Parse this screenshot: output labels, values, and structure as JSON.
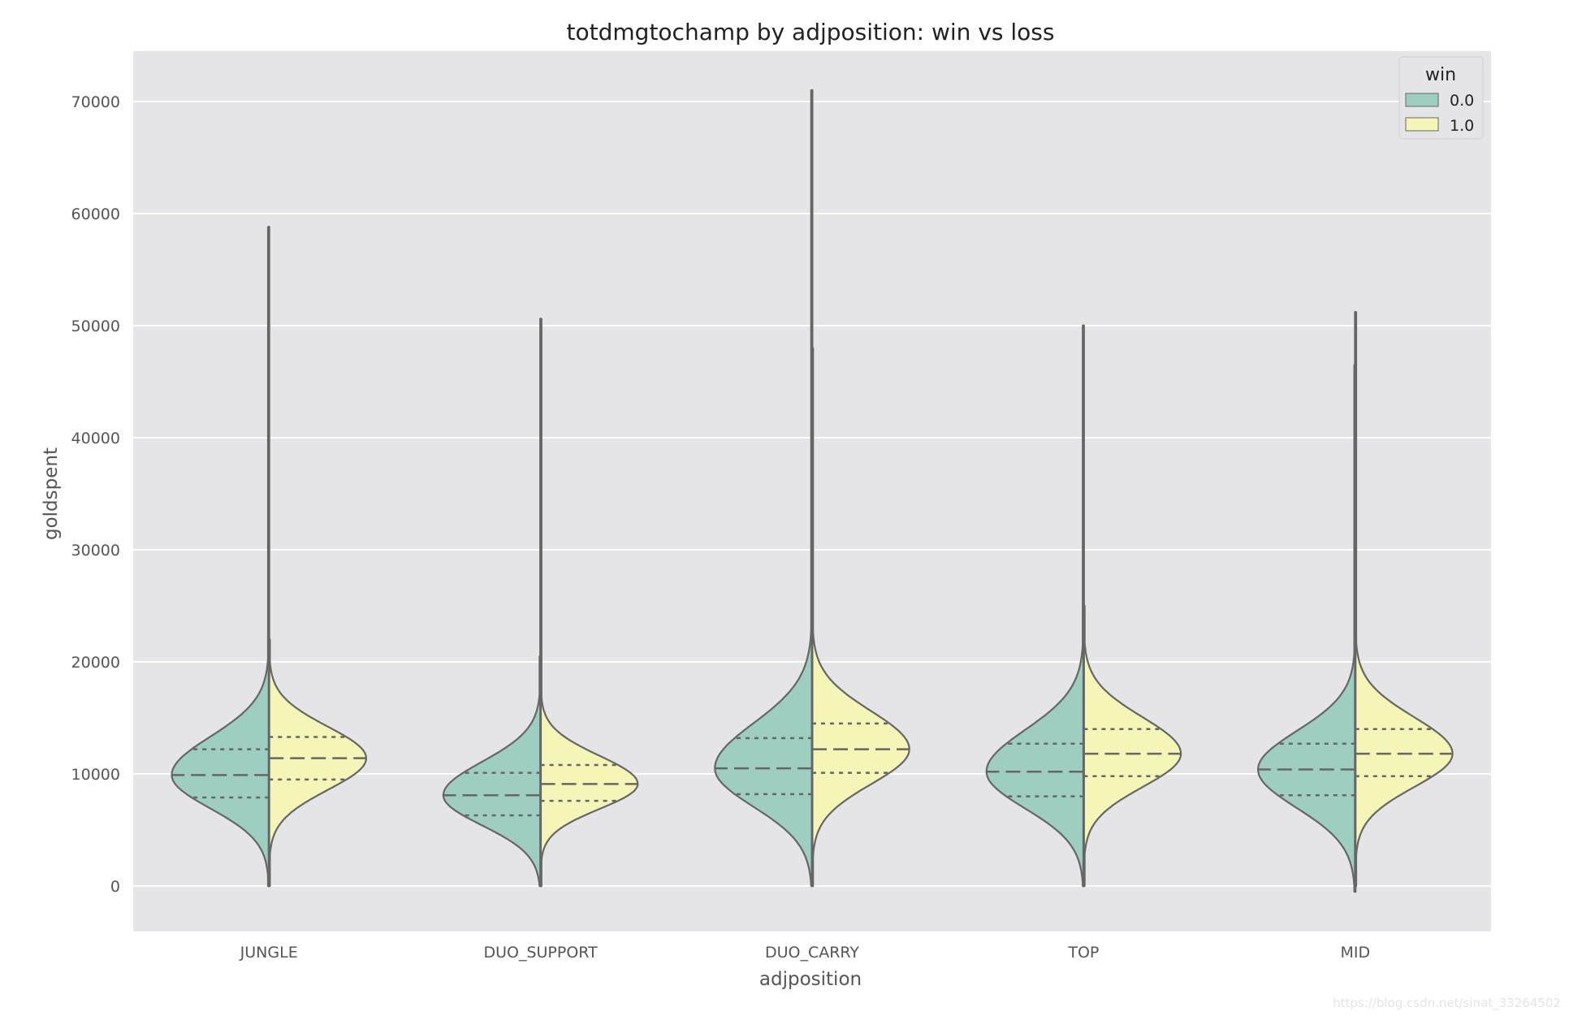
{
  "chart_data": {
    "type": "violin",
    "title": "totdmgtochamp by adjposition: win vs loss",
    "xlabel": "adjposition",
    "ylabel": "goldspent",
    "categories": [
      "JUNGLE",
      "DUO_SUPPORT",
      "DUO_CARRY",
      "TOP",
      "MID"
    ],
    "ylim": [
      -4000,
      75000
    ],
    "yticks": [
      0,
      10000,
      20000,
      30000,
      40000,
      50000,
      60000,
      70000
    ],
    "grid": true,
    "split": true,
    "inner": "quartile",
    "legend": {
      "title": "win",
      "position": "top-right",
      "entries": [
        {
          "label": "0.0",
          "color": "#9ecdc2"
        },
        {
          "label": "1.0",
          "color": "#f5f5b8"
        }
      ]
    },
    "series": [
      {
        "name": "0.0",
        "color": "#9ecdc2",
        "groups": [
          {
            "category": "JUNGLE",
            "min": 0,
            "max": 58800,
            "q1": 7900,
            "median": 9900,
            "q3": 12200
          },
          {
            "category": "DUO_SUPPORT",
            "min": 0,
            "max": 20500,
            "q1": 6300,
            "median": 8100,
            "q3": 10100
          },
          {
            "category": "DUO_CARRY",
            "min": 0,
            "max": 71000,
            "q1": 8200,
            "median": 10500,
            "q3": 13200
          },
          {
            "category": "TOP",
            "min": 0,
            "max": 50000,
            "q1": 8000,
            "median": 10200,
            "q3": 12700
          },
          {
            "category": "MID",
            "min": -500,
            "max": 46500,
            "q1": 8100,
            "median": 10400,
            "q3": 12700
          }
        ]
      },
      {
        "name": "1.0",
        "color": "#f5f5b8",
        "groups": [
          {
            "category": "JUNGLE",
            "min": 0,
            "max": 22000,
            "q1": 9500,
            "median": 11400,
            "q3": 13300
          },
          {
            "category": "DUO_SUPPORT",
            "min": 0,
            "max": 50600,
            "q1": 7600,
            "median": 9100,
            "q3": 10800
          },
          {
            "category": "DUO_CARRY",
            "min": 0,
            "max": 48000,
            "q1": 10100,
            "median": 12200,
            "q3": 14500
          },
          {
            "category": "TOP",
            "min": 0,
            "max": 25000,
            "q1": 9800,
            "median": 11800,
            "q3": 14000
          },
          {
            "category": "MID",
            "min": 0,
            "max": 51200,
            "q1": 9800,
            "median": 11800,
            "q3": 14000
          }
        ]
      }
    ]
  },
  "watermark": "https://blog.csdn.net/sinat_33264502"
}
